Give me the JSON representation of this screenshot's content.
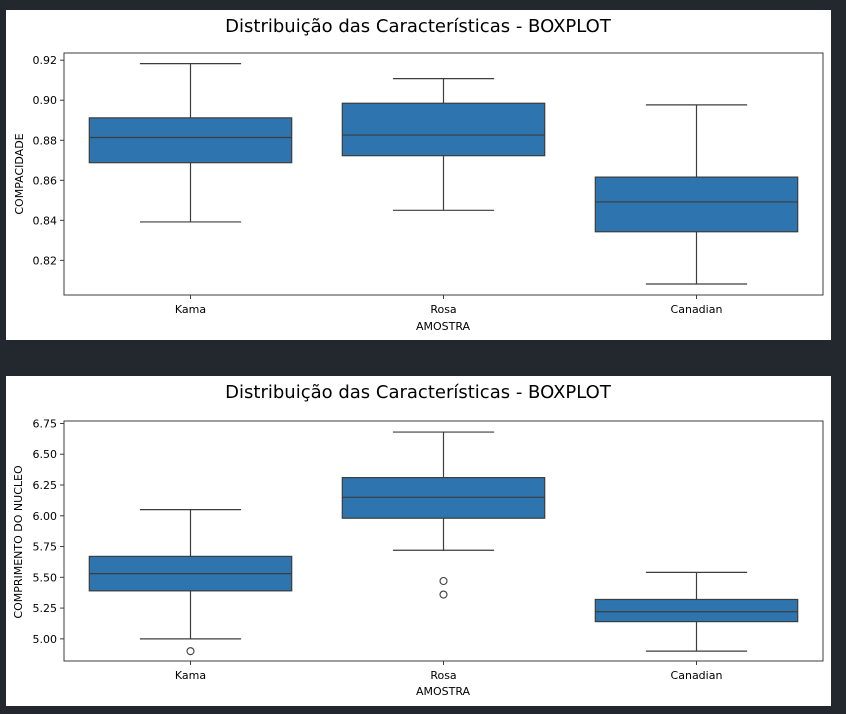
{
  "colors": {
    "page_background": "#23272e",
    "panel_background": "#ffffff",
    "box_fill": "#2e75af",
    "line": "#3d3d3d"
  },
  "chart_data": [
    {
      "type": "box",
      "title": "Distribuição das Características - BOXPLOT",
      "xlabel": "AMOSTRA",
      "ylabel": "COMPACIDADE",
      "categories": [
        "Kama",
        "Rosa",
        "Canadian"
      ],
      "ylim": [
        0.8027,
        0.9236
      ],
      "yticks": [
        "0.82",
        "0.84",
        "0.86",
        "0.88",
        "0.90",
        "0.92"
      ],
      "ytick_values": [
        0.82,
        0.84,
        0.86,
        0.88,
        0.9,
        0.92
      ],
      "grid": false,
      "boxes": [
        {
          "category": "Kama",
          "whisker_low": 0.8392,
          "q1": 0.8688,
          "median": 0.8814,
          "q3": 0.8912,
          "whisker_high": 0.9183,
          "outliers": []
        },
        {
          "category": "Rosa",
          "whisker_low": 0.845,
          "q1": 0.8723,
          "median": 0.8826,
          "q3": 0.8985,
          "whisker_high": 0.9108,
          "outliers": []
        },
        {
          "category": "Canadian",
          "whisker_low": 0.8082,
          "q1": 0.8343,
          "median": 0.8492,
          "q3": 0.8616,
          "whisker_high": 0.8977,
          "outliers": []
        }
      ]
    },
    {
      "type": "box",
      "title": "Distribuição das Características - BOXPLOT",
      "xlabel": "AMOSTRA",
      "ylabel": "COMPRIMENTO DO NUCLEO",
      "categories": [
        "Kama",
        "Rosa",
        "Canadian"
      ],
      "ylim": [
        4.82,
        6.77
      ],
      "yticks": [
        "5.00",
        "5.25",
        "5.50",
        "5.75",
        "6.00",
        "6.25",
        "6.50",
        "6.75"
      ],
      "ytick_values": [
        5.0,
        5.25,
        5.5,
        5.75,
        6.0,
        6.25,
        6.5,
        6.75
      ],
      "grid": false,
      "boxes": [
        {
          "category": "Kama",
          "whisker_low": 5.0,
          "q1": 5.39,
          "median": 5.53,
          "q3": 5.67,
          "whisker_high": 6.05,
          "outliers": [
            4.9
          ]
        },
        {
          "category": "Rosa",
          "whisker_low": 5.72,
          "q1": 5.98,
          "median": 6.15,
          "q3": 6.31,
          "whisker_high": 6.68,
          "outliers": [
            5.47,
            5.36
          ]
        },
        {
          "category": "Canadian",
          "whisker_low": 4.9,
          "q1": 5.14,
          "median": 5.22,
          "q3": 5.32,
          "whisker_high": 5.54,
          "outliers": []
        }
      ]
    }
  ]
}
